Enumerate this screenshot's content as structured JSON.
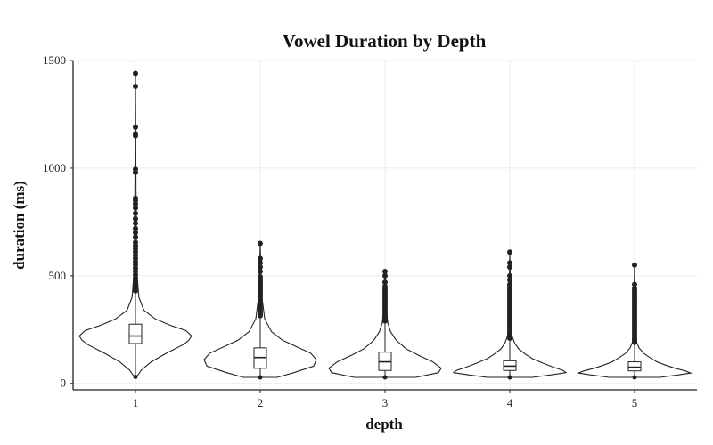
{
  "chart_data": {
    "type": "violin",
    "title": "Vowel Duration by Depth",
    "xlabel": "depth",
    "ylabel": "duration (ms)",
    "categories": [
      "1",
      "2",
      "3",
      "4",
      "5"
    ],
    "ylim": [
      -30,
      1500
    ],
    "yticks": [
      0,
      500,
      1000,
      1500
    ],
    "grid": true,
    "series": [
      {
        "category": "1",
        "min": 30,
        "q1": 185,
        "median": 220,
        "q3": 275,
        "upper_whisker": 420,
        "violin_max": 1440,
        "violin_profile": [
          [
            30,
            0.02
          ],
          [
            60,
            0.1
          ],
          [
            100,
            0.28
          ],
          [
            140,
            0.55
          ],
          [
            180,
            0.85
          ],
          [
            200,
            0.95
          ],
          [
            220,
            1.0
          ],
          [
            245,
            0.9
          ],
          [
            270,
            0.62
          ],
          [
            300,
            0.35
          ],
          [
            340,
            0.15
          ],
          [
            400,
            0.06
          ],
          [
            500,
            0.03
          ],
          [
            700,
            0.015
          ],
          [
            1000,
            0.008
          ],
          [
            1440,
            0
          ]
        ],
        "outliers": [
          430,
          445,
          460,
          475,
          490,
          505,
          520,
          535,
          550,
          565,
          580,
          595,
          610,
          625,
          640,
          655,
          680,
          700,
          720,
          745,
          765,
          790,
          815,
          835,
          850,
          860,
          980,
          995,
          1150,
          1160,
          1190,
          1380,
          1440
        ]
      },
      {
        "category": "2",
        "min": 28,
        "q1": 70,
        "median": 120,
        "q3": 165,
        "upper_whisker": 305,
        "violin_max": 650,
        "violin_profile": [
          [
            28,
            0.3
          ],
          [
            50,
            0.6
          ],
          [
            80,
            0.95
          ],
          [
            110,
            1.0
          ],
          [
            140,
            0.9
          ],
          [
            170,
            0.65
          ],
          [
            200,
            0.4
          ],
          [
            240,
            0.2
          ],
          [
            300,
            0.08
          ],
          [
            400,
            0.03
          ],
          [
            500,
            0.015
          ],
          [
            650,
            0
          ]
        ],
        "outliers": [
          315,
          325,
          335,
          345,
          355,
          365,
          375,
          385,
          395,
          405,
          415,
          425,
          435,
          445,
          455,
          465,
          475,
          485,
          495,
          520,
          540,
          560,
          580,
          650
        ]
      },
      {
        "category": "3",
        "min": 28,
        "q1": 60,
        "median": 100,
        "q3": 145,
        "upper_whisker": 280,
        "violin_max": 520,
        "violin_profile": [
          [
            28,
            0.55
          ],
          [
            50,
            0.95
          ],
          [
            70,
            1.0
          ],
          [
            100,
            0.85
          ],
          [
            130,
            0.6
          ],
          [
            160,
            0.38
          ],
          [
            200,
            0.2
          ],
          [
            240,
            0.1
          ],
          [
            280,
            0.05
          ],
          [
            350,
            0.02
          ],
          [
            520,
            0
          ]
        ],
        "outliers": [
          290,
          300,
          310,
          320,
          330,
          340,
          350,
          360,
          370,
          380,
          390,
          400,
          410,
          420,
          430,
          440,
          450,
          470,
          500,
          520
        ]
      },
      {
        "category": "4",
        "min": 28,
        "q1": 60,
        "median": 80,
        "q3": 105,
        "upper_whisker": 200,
        "violin_max": 610,
        "violin_profile": [
          [
            28,
            0.4
          ],
          [
            40,
            0.75
          ],
          [
            50,
            1.0
          ],
          [
            60,
            0.95
          ],
          [
            75,
            0.78
          ],
          [
            95,
            0.58
          ],
          [
            115,
            0.4
          ],
          [
            135,
            0.28
          ],
          [
            160,
            0.16
          ],
          [
            185,
            0.09
          ],
          [
            220,
            0.04
          ],
          [
            300,
            0.02
          ],
          [
            450,
            0.01
          ],
          [
            610,
            0
          ]
        ],
        "outliers": [
          210,
          220,
          230,
          240,
          250,
          260,
          270,
          280,
          290,
          300,
          310,
          320,
          330,
          340,
          350,
          360,
          370,
          380,
          390,
          400,
          410,
          420,
          430,
          440,
          450,
          460,
          480,
          500,
          540,
          560,
          610
        ]
      },
      {
        "category": "5",
        "min": 28,
        "q1": 58,
        "median": 75,
        "q3": 100,
        "upper_whisker": 180,
        "violin_max": 550,
        "violin_profile": [
          [
            28,
            0.45
          ],
          [
            40,
            0.8
          ],
          [
            48,
            1.0
          ],
          [
            58,
            0.9
          ],
          [
            70,
            0.72
          ],
          [
            85,
            0.55
          ],
          [
            100,
            0.4
          ],
          [
            120,
            0.27
          ],
          [
            140,
            0.16
          ],
          [
            165,
            0.08
          ],
          [
            190,
            0.04
          ],
          [
            260,
            0.02
          ],
          [
            400,
            0.01
          ],
          [
            550,
            0
          ]
        ],
        "outliers": [
          190,
          200,
          210,
          220,
          230,
          240,
          250,
          260,
          270,
          280,
          290,
          300,
          310,
          320,
          330,
          340,
          350,
          360,
          370,
          380,
          390,
          400,
          410,
          420,
          430,
          440,
          460,
          550
        ]
      }
    ]
  }
}
